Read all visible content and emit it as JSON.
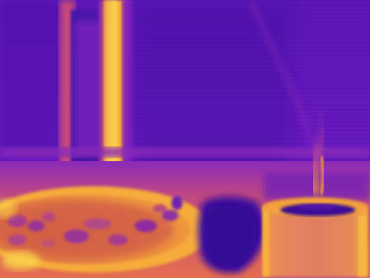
{
  "image": {
    "kind": "thermal-camera-frame",
    "palette": "plasma",
    "palette_colors": {
      "coldest": "#2a0a6e",
      "cold": "#5a14b4",
      "mid_cold": "#7a1fc0",
      "mid": "#b5388f",
      "warm": "#e06a4a",
      "hot": "#f7a035",
      "hottest": "#fbd24a"
    },
    "subjects": [
      "vertical-slatted-wall",
      "hot-vertical-post",
      "round-tray-with-items",
      "cylindrical-cup-with-liquid",
      "rising-steam",
      "dark-cloth-shadow"
    ]
  }
}
